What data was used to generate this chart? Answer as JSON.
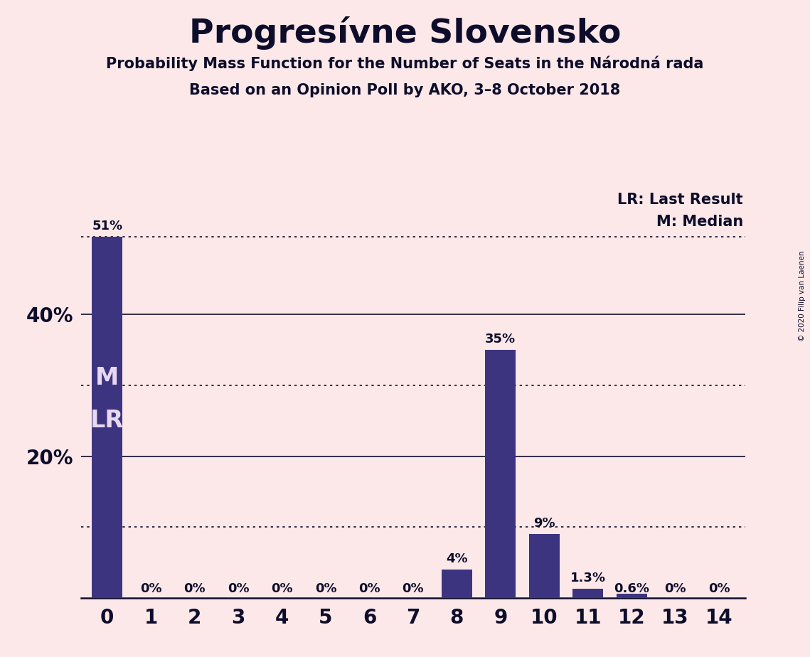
{
  "title": "Progresívne Slovensko",
  "subtitle1": "Probability Mass Function for the Number of Seats in the Národná rada",
  "subtitle2": "Based on an Opinion Poll by AKO, 3–8 October 2018",
  "copyright": "© 2020 Filip van Laenen",
  "categories": [
    0,
    1,
    2,
    3,
    4,
    5,
    6,
    7,
    8,
    9,
    10,
    11,
    12,
    13,
    14
  ],
  "values": [
    0.51,
    0.0,
    0.0,
    0.0,
    0.0,
    0.0,
    0.0,
    0.0,
    0.04,
    0.35,
    0.09,
    0.013,
    0.006,
    0.0,
    0.0
  ],
  "labels": [
    "51%",
    "0%",
    "0%",
    "0%",
    "0%",
    "0%",
    "0%",
    "0%",
    "4%",
    "35%",
    "9%",
    "1.3%",
    "0.6%",
    "0%",
    "0%"
  ],
  "bar_color": "#3d3480",
  "background_color": "#fce8e8",
  "text_color": "#0d0d2b",
  "ylim": [
    0,
    0.575
  ],
  "yticks": [
    0.2,
    0.4
  ],
  "ytick_labels": [
    "20%",
    "40%"
  ],
  "lr_value": 0.51,
  "median_value": 0.3,
  "lr_label": "LR: Last Result",
  "median_label": "M: Median",
  "bar_label_inside_color": "#e8d8f0",
  "solid_line_color": "#0d0d2b",
  "dotted_line_color": "#0d0d2b",
  "dotted_lines": [
    0.51,
    0.3,
    0.1
  ],
  "solid_lines": [
    0.2,
    0.4
  ]
}
